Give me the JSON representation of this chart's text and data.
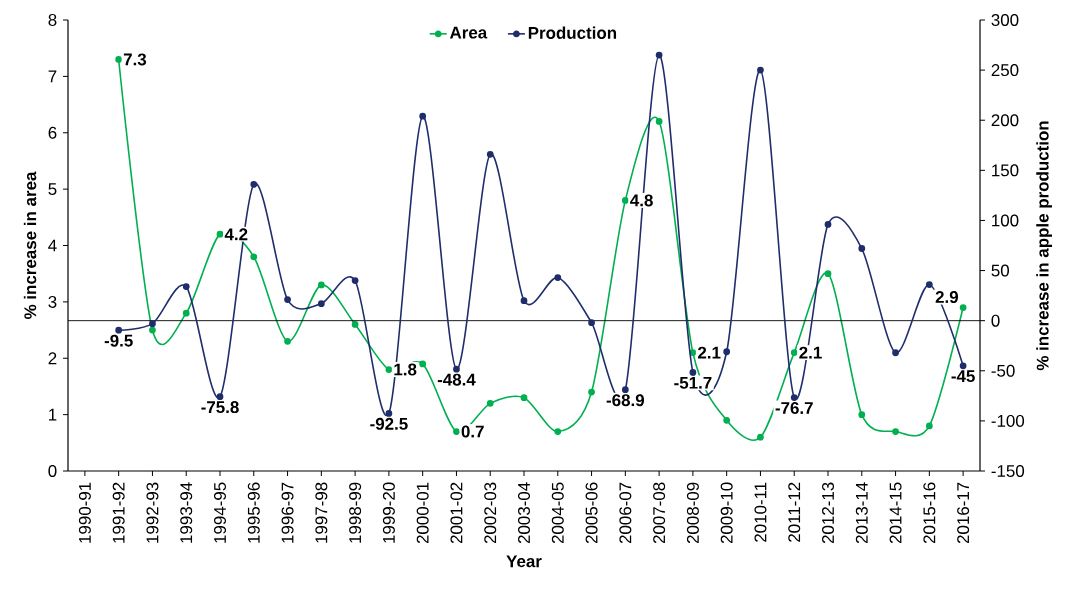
{
  "chart_data": {
    "type": "line",
    "xlabel": "Year",
    "ylabel": "% increase in area",
    "y2label": "% increase in apple production",
    "categories": [
      "1990-91",
      "1991-92",
      "1992-93",
      "1993-94",
      "1994-95",
      "1995-96",
      "1996-97",
      "1997-98",
      "1998-99",
      "1999-20",
      "2000-01",
      "2001-02",
      "2002-03",
      "2003-04",
      "2004-05",
      "2005-06",
      "2006-07",
      "2007-08",
      "2008-09",
      "2009-10",
      "2010-11",
      "2011-12",
      "2012-13",
      "2013-14",
      "2014-15",
      "2015-16",
      "2016-17"
    ],
    "series": [
      {
        "name": "Area",
        "color": "#00b050",
        "values": [
          null,
          7.3,
          2.5,
          2.8,
          4.2,
          3.8,
          2.3,
          3.3,
          2.6,
          1.8,
          1.9,
          0.7,
          1.2,
          1.3,
          0.7,
          1.4,
          4.8,
          6.2,
          2.1,
          0.9,
          0.6,
          2.1,
          3.5,
          1.0,
          0.7,
          0.8,
          2.9
        ],
        "value_labels": [
          null,
          "7.3",
          null,
          null,
          "4.2",
          null,
          null,
          null,
          null,
          "1.8",
          null,
          "0.7",
          null,
          null,
          null,
          null,
          "4.8",
          null,
          "2.1",
          null,
          null,
          "2.1",
          null,
          null,
          null,
          null,
          "2.9"
        ]
      },
      {
        "name": "Production",
        "color": "#1f2d6b",
        "axis": "y2",
        "values": [
          null,
          -9.5,
          -3,
          34,
          -75.8,
          136,
          21,
          17,
          40,
          -92.5,
          204,
          -48.4,
          166,
          20,
          43,
          -2,
          -68.9,
          265,
          -51.7,
          -31,
          250,
          -76.7,
          96,
          72,
          -32,
          36,
          -45
        ],
        "value_labels": [
          null,
          "-9.5",
          null,
          null,
          "-75.8",
          null,
          null,
          null,
          null,
          "-92.5",
          null,
          "-48.4",
          null,
          null,
          null,
          null,
          "-68.9",
          null,
          "-51.7",
          null,
          null,
          "-76.7",
          null,
          null,
          null,
          null,
          "-45"
        ]
      }
    ],
    "ylim": [
      0,
      8
    ],
    "yticks": [
      0,
      1,
      2,
      3,
      4,
      5,
      6,
      7,
      8
    ],
    "y2lim": [
      -150,
      300
    ],
    "y2ticks": [
      -150,
      -100,
      -50,
      0,
      50,
      100,
      150,
      200,
      250,
      300
    ],
    "ref_lines": [
      {
        "axis": "y2",
        "value": 0,
        "color": "#000000"
      }
    ],
    "legend": "top",
    "marker": "circle"
  }
}
